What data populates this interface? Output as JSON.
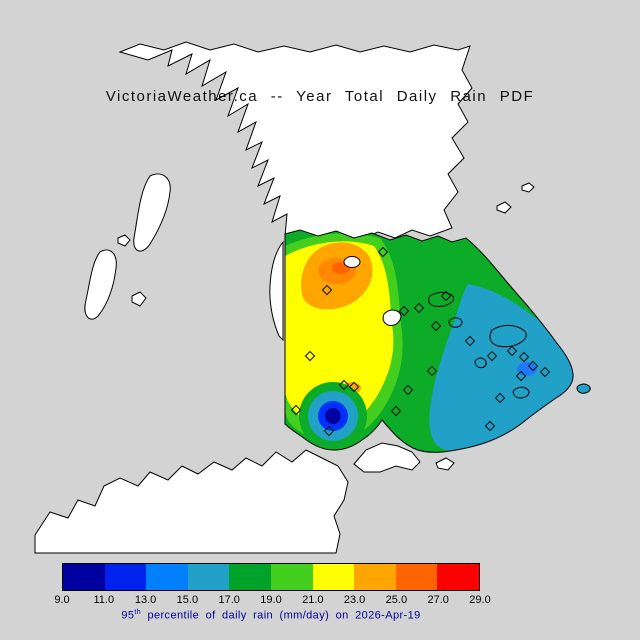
{
  "page": {
    "background": "#d3d3d3"
  },
  "title": {
    "text": "VictoriaWeather.ca -- Year Total Daily Rain PDF"
  },
  "colorbar": {
    "tick_labels": [
      "9.0",
      "11.0",
      "13.0",
      "15.0",
      "17.0",
      "19.0",
      "21.0",
      "23.0",
      "25.0",
      "27.0",
      "29.0"
    ],
    "segment_colors": [
      "#0000a0",
      "#0022ee",
      "#0080ff",
      "#21a0c8",
      "#00a32a",
      "#44cf1e",
      "#ffff00",
      "#ffa500",
      "#ff6400",
      "#ff0000"
    ],
    "border_color": "#000000"
  },
  "caption": {
    "prefix": "95",
    "superscript": "th",
    "rest": " percentile of daily rain (mm/day) on 2026-Apr-19",
    "color": "#00009c"
  },
  "map": {
    "water_color": "#d3d3d3",
    "land_color": "#ffffff",
    "coast_color": "#000000",
    "station_markers": [
      [
        383,
        252
      ],
      [
        327,
        290
      ],
      [
        404,
        311
      ],
      [
        419,
        308
      ],
      [
        446,
        296
      ],
      [
        436,
        326
      ],
      [
        470,
        341
      ],
      [
        492,
        356
      ],
      [
        512,
        351
      ],
      [
        524,
        357
      ],
      [
        533,
        366
      ],
      [
        545,
        372
      ],
      [
        500,
        398
      ],
      [
        490,
        426
      ],
      [
        432,
        371
      ],
      [
        408,
        390
      ],
      [
        396,
        411
      ],
      [
        344,
        385
      ],
      [
        354,
        387
      ],
      [
        310,
        356
      ],
      [
        296,
        410
      ],
      [
        329,
        431
      ],
      [
        521,
        376
      ]
    ]
  },
  "chart_data": {
    "type": "heatmap",
    "title": "VictoriaWeather.ca -- Year Total Daily Rain PDF",
    "variable": "95th percentile of daily rain",
    "units": "mm/day",
    "date": "2026-Apr-19",
    "colorbar_ticks": [
      9.0,
      11.0,
      13.0,
      15.0,
      17.0,
      19.0,
      21.0,
      23.0,
      25.0,
      27.0,
      29.0
    ],
    "colorbar_colors": [
      "#0000a0",
      "#0022ee",
      "#0080ff",
      "#21a0c8",
      "#00a32a",
      "#44cf1e",
      "#ffff00",
      "#ffa500",
      "#ff6400",
      "#ff0000"
    ],
    "value_range": [
      9.0,
      29.0
    ],
    "field_summary": {
      "low_center_value_band": "9-13 (dark blue/blue bullseye, south-central)",
      "high_center_value_band": "23-27 (orange, northwest of domain)",
      "east_region_band": "15-17 (cyan over eastern islands)",
      "dominant_bands": "17-23 (green and yellow)"
    },
    "station_count": 23
  }
}
